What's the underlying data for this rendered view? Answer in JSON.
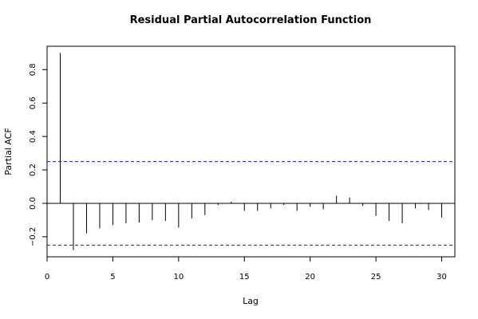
{
  "chart_data": {
    "type": "bar",
    "title": "Residual Partial Autocorrelation Function",
    "xlabel": "Lag",
    "ylabel": "Partial ACF",
    "xlim": [
      0,
      31
    ],
    "ylim": [
      -0.32,
      0.94
    ],
    "x_ticks": [
      0,
      5,
      10,
      15,
      20,
      25,
      30
    ],
    "y_ticks": [
      -0.2,
      0.0,
      0.2,
      0.4,
      0.6,
      0.8
    ],
    "x_tick_labels": [
      "0",
      "5",
      "10",
      "15",
      "20",
      "25",
      "30"
    ],
    "y_tick_labels": [
      "−0.2",
      "0.0",
      "0.2",
      "0.4",
      "0.6",
      "0.8"
    ],
    "confidence_bounds": [
      0.25,
      -0.25
    ],
    "lags": [
      1,
      2,
      3,
      4,
      5,
      6,
      7,
      8,
      9,
      10,
      11,
      12,
      13,
      14,
      15,
      16,
      17,
      18,
      19,
      20,
      21,
      22,
      23,
      24,
      25,
      26,
      27,
      28,
      29,
      30
    ],
    "values": [
      0.9,
      -0.28,
      -0.18,
      -0.15,
      -0.13,
      -0.12,
      -0.115,
      -0.1,
      -0.105,
      -0.145,
      -0.09,
      -0.07,
      -0.01,
      0.01,
      -0.045,
      -0.045,
      -0.03,
      -0.01,
      -0.045,
      -0.02,
      -0.035,
      0.045,
      0.035,
      -0.015,
      -0.075,
      -0.105,
      -0.12,
      -0.03,
      -0.04,
      -0.085
    ],
    "colors": {
      "bars": "#000000",
      "confidence": "#1a1aff"
    }
  }
}
